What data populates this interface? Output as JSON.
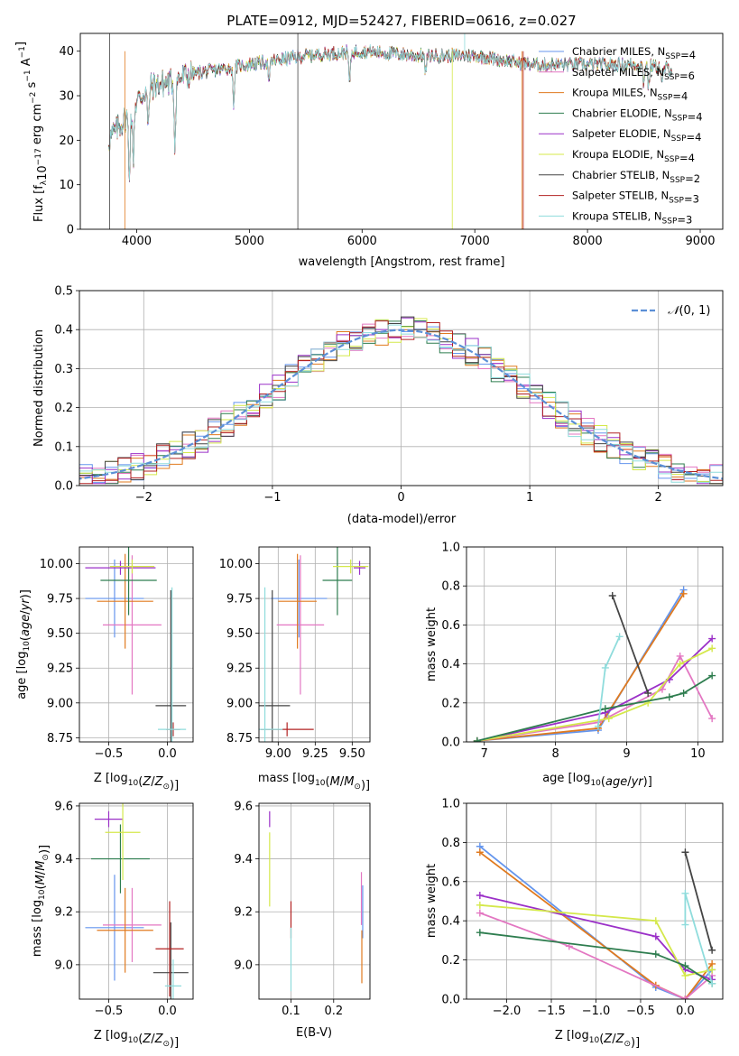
{
  "colors": {
    "chabrier_miles": "#6495ed",
    "salpeter_miles": "#e377c2",
    "kroupa_miles": "#e07a1f",
    "chabrier_elodie": "#2e7d4f",
    "salpeter_elodie": "#9b30c8",
    "kroupa_elodie": "#d4e84a",
    "chabrier_stelib": "#444444",
    "salpeter_stelib": "#b22222",
    "kroupa_stelib": "#8fdcdc",
    "gaussian": "#5b8fd6"
  },
  "chart_data": [
    {
      "id": "spectrum",
      "type": "line",
      "title": "PLATE=0912, MJD=52427, FIBERID=0616, z=0.027",
      "xlabel": "wavelength [Angstrom, rest frame]",
      "ylabel": "Flux [f_λ10^-17 erg cm^-2 s^-1 A^-1]",
      "xlim": [
        3500,
        9200
      ],
      "ylim": [
        0,
        44
      ],
      "xticks": [
        4000,
        5000,
        6000,
        7000,
        8000,
        9000
      ],
      "yticks": [
        0,
        10,
        20,
        30,
        40
      ],
      "grid": false,
      "legend_position": "top-right",
      "spectrum_range": [
        3750,
        8750
      ],
      "spectrum_shape": {
        "x": [
          3750,
          3900,
          4100,
          4300,
          4500,
          5000,
          5500,
          6000,
          6500,
          7000,
          7500,
          8000,
          8500,
          8750
        ],
        "y": [
          20,
          25,
          32,
          33,
          35,
          37,
          39,
          40,
          39,
          39,
          37,
          37,
          37,
          36
        ]
      },
      "legend": [
        {
          "main": "Chabrier MILES, N",
          "sub": "SSP",
          "tail": "=4",
          "color_key": "chabrier_miles"
        },
        {
          "main": "Salpeter MILES, N",
          "sub": "SSP",
          "tail": "=6",
          "color_key": "salpeter_miles"
        },
        {
          "main": "Kroupa MILES, N",
          "sub": "SSP",
          "tail": "=4",
          "color_key": "kroupa_miles"
        },
        {
          "main": "Chabrier ELODIE, N",
          "sub": "SSP",
          "tail": "=4",
          "color_key": "chabrier_elodie"
        },
        {
          "main": "Salpeter ELODIE, N",
          "sub": "SSP",
          "tail": "=4",
          "color_key": "salpeter_elodie"
        },
        {
          "main": "Kroupa ELODIE, N",
          "sub": "SSP",
          "tail": "=4",
          "color_key": "kroupa_elodie"
        },
        {
          "main": "Chabrier STELIB, N",
          "sub": "SSP",
          "tail": "=2",
          "color_key": "chabrier_stelib"
        },
        {
          "main": "Salpeter STELIB, N",
          "sub": "SSP",
          "tail": "=3",
          "color_key": "salpeter_stelib"
        },
        {
          "main": "Kroupa STELIB, N",
          "sub": "SSP",
          "tail": "=3",
          "color_key": "kroupa_stelib"
        }
      ]
    },
    {
      "id": "residuals",
      "type": "histogram",
      "xlabel": "(data-model)/error",
      "ylabel": "Normed distribution",
      "xlim": [
        -2.5,
        2.5
      ],
      "ylim": [
        0,
        0.5
      ],
      "xticks": [
        -2,
        -1,
        0,
        1,
        2
      ],
      "yticks": [
        0.0,
        0.1,
        0.2,
        0.3,
        0.4,
        0.5
      ],
      "grid": true,
      "legend_position": "top-right",
      "legend_label": "N(0, 1)",
      "bin_width": 0.1
    },
    {
      "id": "age_vs_Z",
      "type": "errorbar",
      "xlabel": "Z [log10(Z/Z⊙)]",
      "ylabel": "age  [log10(age/yr)]",
      "xlim": [
        -0.75,
        0.22
      ],
      "ylim": [
        8.72,
        10.12
      ],
      "xticks": [
        -0.5,
        0.0
      ],
      "yticks": [
        8.75,
        9.0,
        9.25,
        9.5,
        9.75,
        10.0
      ],
      "grid": true,
      "points": [
        {
          "key": "chabrier_miles",
          "x": -0.45,
          "xerr": 0.25,
          "y": 9.75,
          "yerr": 0.28
        },
        {
          "key": "salpeter_miles",
          "x": -0.3,
          "xerr": 0.25,
          "y": 9.56,
          "yerr": 0.5
        },
        {
          "key": "kroupa_miles",
          "x": -0.36,
          "xerr": 0.24,
          "y": 9.73,
          "yerr": 0.34
        },
        {
          "key": "chabrier_elodie",
          "x": -0.33,
          "xerr": 0.24,
          "y": 9.88,
          "yerr": 0.25
        },
        {
          "key": "salpeter_elodie",
          "x": -0.4,
          "xerr": 0.3,
          "y": 9.97,
          "yerr": 0.05
        },
        {
          "key": "kroupa_elodie",
          "x": -0.3,
          "xerr": 0.19,
          "y": 9.98,
          "yerr": 0.05
        },
        {
          "key": "chabrier_stelib",
          "x": 0.03,
          "xerr": 0.13,
          "y": 8.98,
          "yerr": 0.83
        },
        {
          "key": "salpeter_stelib",
          "x": 0.05,
          "xerr": 0.06,
          "y": 8.81,
          "yerr": 0.05
        },
        {
          "key": "kroupa_stelib",
          "x": 0.04,
          "xerr": 0.12,
          "y": 8.81,
          "yerr": 1.02
        }
      ]
    },
    {
      "id": "age_vs_mass",
      "type": "errorbar",
      "xlabel": "mass [log10(M/M⊙)]",
      "ylabel": "",
      "xlim": [
        8.87,
        9.62
      ],
      "ylim": [
        8.72,
        10.12
      ],
      "xticks": [
        9.0,
        9.25,
        9.5
      ],
      "yticks": [
        8.75,
        9.0,
        9.25,
        9.5,
        9.75,
        10.0
      ],
      "grid": true,
      "points": [
        {
          "key": "chabrier_miles",
          "x": 9.14,
          "xerr": 0.19,
          "y": 9.75,
          "yerr": 0.28
        },
        {
          "key": "salpeter_miles",
          "x": 9.15,
          "xerr": 0.16,
          "y": 9.56,
          "yerr": 0.5
        },
        {
          "key": "kroupa_miles",
          "x": 9.13,
          "xerr": 0.13,
          "y": 9.73,
          "yerr": 0.34
        },
        {
          "key": "chabrier_elodie",
          "x": 9.4,
          "xerr": 0.1,
          "y": 9.88,
          "yerr": 0.25
        },
        {
          "key": "salpeter_elodie",
          "x": 9.55,
          "xerr": 0.04,
          "y": 9.97,
          "yerr": 0.05
        },
        {
          "key": "kroupa_elodie",
          "x": 9.49,
          "xerr": 0.12,
          "y": 9.98,
          "yerr": 0.05
        },
        {
          "key": "chabrier_stelib",
          "x": 8.96,
          "xerr": 0.12,
          "y": 8.98,
          "yerr": 0.83
        },
        {
          "key": "salpeter_stelib",
          "x": 9.06,
          "xerr": 0.18,
          "y": 8.81,
          "yerr": 0.05
        },
        {
          "key": "kroupa_stelib",
          "x": 8.91,
          "xerr": 0.12,
          "y": 8.81,
          "yerr": 1.02
        }
      ]
    },
    {
      "id": "massweight_vs_age",
      "type": "line",
      "xlabel": "age  [log10(age/yr)]",
      "ylabel": "mass weight",
      "xlim": [
        6.75,
        10.35
      ],
      "ylim": [
        0,
        1
      ],
      "xticks": [
        7,
        8,
        9,
        10
      ],
      "yticks": [
        0.0,
        0.2,
        0.4,
        0.6,
        0.8,
        1.0
      ],
      "grid": true,
      "series": [
        {
          "key": "chabrier_miles",
          "x": [
            6.9,
            8.6,
            9.8
          ],
          "y": [
            0.005,
            0.06,
            0.78
          ]
        },
        {
          "key": "kroupa_miles",
          "x": [
            6.9,
            8.6,
            9.8
          ],
          "y": [
            0.005,
            0.07,
            0.76
          ]
        },
        {
          "key": "salpeter_miles",
          "x": [
            6.9,
            8.6,
            9.5,
            9.75,
            10.2
          ],
          "y": [
            0.005,
            0.1,
            0.27,
            0.44,
            0.12
          ]
        },
        {
          "key": "salpeter_elodie",
          "x": [
            6.9,
            8.7,
            9.6,
            10.2
          ],
          "y": [
            0.005,
            0.15,
            0.32,
            0.53
          ]
        },
        {
          "key": "kroupa_elodie",
          "x": [
            6.9,
            8.75,
            9.3,
            9.75,
            10.2
          ],
          "y": [
            0.005,
            0.12,
            0.2,
            0.4,
            0.48
          ]
        },
        {
          "key": "chabrier_elodie",
          "x": [
            6.9,
            8.7,
            9.6,
            9.8,
            10.2
          ],
          "y": [
            0.005,
            0.17,
            0.23,
            0.25,
            0.34
          ]
        },
        {
          "key": "chabrier_stelib",
          "x": [
            8.8,
            9.3
          ],
          "y": [
            0.75,
            0.25
          ]
        },
        {
          "key": "kroupa_stelib",
          "x": [
            8.6,
            8.7,
            8.9
          ],
          "y": [
            0.08,
            0.38,
            0.54
          ]
        }
      ]
    },
    {
      "id": "mass_vs_Z",
      "type": "errorbar",
      "xlabel": "Z [log10(Z/Z⊙)]",
      "ylabel": "mass [log10(M/M⊙)]",
      "xlim": [
        -0.75,
        0.22
      ],
      "ylim": [
        8.87,
        9.61
      ],
      "xticks": [
        -0.5,
        0.0
      ],
      "yticks": [
        9.0,
        9.2,
        9.4,
        9.6
      ],
      "grid": true,
      "points": [
        {
          "key": "chabrier_miles",
          "x": -0.45,
          "xerr": 0.25,
          "y": 9.14,
          "yerr": 0.2
        },
        {
          "key": "salpeter_miles",
          "x": -0.3,
          "xerr": 0.25,
          "y": 9.15,
          "yerr": 0.14
        },
        {
          "key": "kroupa_miles",
          "x": -0.36,
          "xerr": 0.24,
          "y": 9.13,
          "yerr": 0.16
        },
        {
          "key": "chabrier_elodie",
          "x": -0.4,
          "xerr": 0.25,
          "y": 9.4,
          "yerr": 0.13
        },
        {
          "key": "salpeter_elodie",
          "x": -0.5,
          "xerr": 0.12,
          "y": 9.55,
          "yerr": 0.03
        },
        {
          "key": "kroupa_elodie",
          "x": -0.38,
          "xerr": 0.15,
          "y": 9.5,
          "yerr": 0.18
        },
        {
          "key": "chabrier_stelib",
          "x": 0.03,
          "xerr": 0.15,
          "y": 8.97,
          "yerr": 0.19
        },
        {
          "key": "salpeter_stelib",
          "x": 0.02,
          "xerr": 0.12,
          "y": 9.06,
          "yerr": 0.18
        },
        {
          "key": "kroupa_stelib",
          "x": 0.05,
          "xerr": 0.07,
          "y": 8.92,
          "yerr": 0.1
        }
      ]
    },
    {
      "id": "mass_vs_ebv",
      "type": "errorbar",
      "xlabel": "E(B-V)",
      "ylabel": "",
      "xlim": [
        0.025,
        0.285
      ],
      "ylim": [
        8.87,
        9.61
      ],
      "xticks": [
        0.1,
        0.2
      ],
      "yticks": [
        9.0,
        9.2,
        9.4,
        9.6
      ],
      "grid": true,
      "points": [
        {
          "key": "salpeter_elodie",
          "x": 0.05,
          "xerr": 0,
          "y": 9.55,
          "yerr": 0.03
        },
        {
          "key": "kroupa_elodie",
          "x": 0.05,
          "xerr": 0,
          "y": 9.36,
          "yerr": 0.14
        },
        {
          "key": "salpeter_stelib",
          "x": 0.1,
          "xerr": 0,
          "y": 9.17,
          "yerr": 0.07
        },
        {
          "key": "kroupa_stelib",
          "x": 0.1,
          "xerr": 0,
          "y": 9.02,
          "yerr": 0.12
        },
        {
          "key": "salpeter_miles",
          "x": 0.265,
          "xerr": 0,
          "y": 9.25,
          "yerr": 0.1
        },
        {
          "key": "chabrier_miles",
          "x": 0.268,
          "xerr": 0,
          "y": 9.2,
          "yerr": 0.1
        },
        {
          "key": "kroupa_miles",
          "x": 0.266,
          "xerr": 0,
          "y": 9.03,
          "yerr": 0.1
        }
      ]
    },
    {
      "id": "massweight_vs_Z",
      "type": "line",
      "xlabel": "Z [log10(Z/Z⊙)]",
      "ylabel": "mass weight",
      "xlim": [
        -2.45,
        0.42
      ],
      "ylim": [
        0,
        1
      ],
      "xticks": [
        -2.0,
        -1.5,
        -1.0,
        -0.5,
        0.0
      ],
      "yticks": [
        0.0,
        0.2,
        0.4,
        0.6,
        0.8,
        1.0
      ],
      "grid": true,
      "series": [
        {
          "key": "chabrier_miles",
          "x": [
            -2.3,
            -0.33,
            0.0,
            0.3
          ],
          "y": [
            0.78,
            0.06,
            0.0,
            0.15
          ]
        },
        {
          "key": "kroupa_miles",
          "x": [
            -2.3,
            -0.33,
            0.0,
            0.3
          ],
          "y": [
            0.75,
            0.07,
            0.0,
            0.18
          ]
        },
        {
          "key": "salpeter_miles",
          "x": [
            -2.3,
            -1.3,
            0.0,
            0.3
          ],
          "y": [
            0.44,
            0.27,
            0.0,
            0.12
          ]
        },
        {
          "key": "salpeter_elodie",
          "x": [
            -2.3,
            -0.33,
            0.0,
            0.3
          ],
          "y": [
            0.53,
            0.32,
            0.15,
            0.1
          ]
        },
        {
          "key": "kroupa_elodie",
          "x": [
            -2.3,
            -0.33,
            0.0,
            0.3
          ],
          "y": [
            0.48,
            0.4,
            0.12,
            0.15
          ]
        },
        {
          "key": "chabrier_elodie",
          "x": [
            -2.3,
            -0.33,
            0.0,
            0.3
          ],
          "y": [
            0.34,
            0.23,
            0.17,
            0.08
          ]
        },
        {
          "key": "chabrier_stelib",
          "x": [
            0.0,
            0.3
          ],
          "y": [
            0.75,
            0.25
          ]
        },
        {
          "key": "kroupa_stelib",
          "x": [
            0.0,
            0.0,
            0.3
          ],
          "y": [
            0.38,
            0.54,
            0.08
          ]
        }
      ]
    }
  ]
}
